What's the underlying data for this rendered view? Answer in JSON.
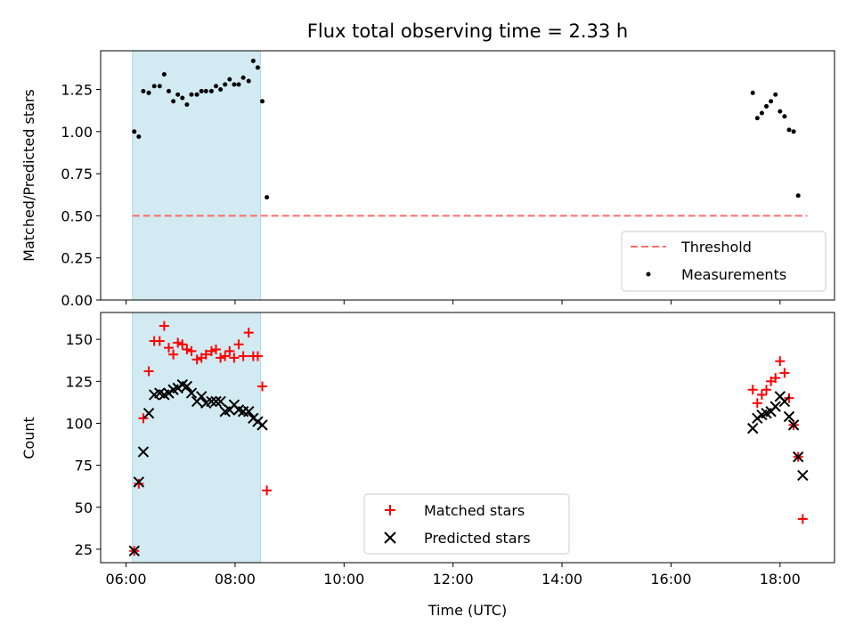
{
  "chart_data": [
    {
      "type": "scatter",
      "title": "Flux total observing time = 2.33 h",
      "xlabel": "",
      "ylabel": "Matched/Predicted stars",
      "xlim": [
        "05:32",
        "19:00"
      ],
      "ylim": [
        0,
        1.48
      ],
      "yticks": [
        "0.00",
        "0.25",
        "0.50",
        "0.75",
        "1.00",
        "1.25"
      ],
      "shaded_region": {
        "x_from": "06:07",
        "x_to": "08:28",
        "color": "#add8e6"
      },
      "threshold": {
        "name": "Threshold",
        "value": 0.5,
        "x_from": "06:07",
        "x_to": "18:30",
        "color": "#ff6b6b",
        "style": "dashed"
      },
      "series": [
        {
          "name": "Measurements",
          "marker": "dot",
          "color": "#000000",
          "points": [
            [
              "06:09",
              1.0
            ],
            [
              "06:14",
              0.97
            ],
            [
              "06:19",
              1.24
            ],
            [
              "06:25",
              1.23
            ],
            [
              "06:31",
              1.27
            ],
            [
              "06:37",
              1.27
            ],
            [
              "06:42",
              1.34
            ],
            [
              "06:47",
              1.24
            ],
            [
              "06:52",
              1.18
            ],
            [
              "06:57",
              1.22
            ],
            [
              "07:02",
              1.2
            ],
            [
              "07:07",
              1.16
            ],
            [
              "07:12",
              1.22
            ],
            [
              "07:18",
              1.22
            ],
            [
              "07:23",
              1.24
            ],
            [
              "07:28",
              1.24
            ],
            [
              "07:34",
              1.24
            ],
            [
              "07:39",
              1.27
            ],
            [
              "07:44",
              1.25
            ],
            [
              "07:49",
              1.28
            ],
            [
              "07:54",
              1.31
            ],
            [
              "07:59",
              1.28
            ],
            [
              "08:04",
              1.28
            ],
            [
              "08:09",
              1.32
            ],
            [
              "08:15",
              1.3
            ],
            [
              "08:20",
              1.42
            ],
            [
              "08:25",
              1.38
            ],
            [
              "08:30",
              1.18
            ],
            [
              "08:35",
              0.61
            ],
            [
              "17:30",
              1.23
            ],
            [
              "17:35",
              1.08
            ],
            [
              "17:40",
              1.11
            ],
            [
              "17:45",
              1.15
            ],
            [
              "17:50",
              1.18
            ],
            [
              "17:55",
              1.22
            ],
            [
              "18:00",
              1.12
            ],
            [
              "18:05",
              1.09
            ],
            [
              "18:10",
              1.01
            ],
            [
              "18:15",
              1.0
            ],
            [
              "18:20",
              0.62
            ]
          ]
        }
      ],
      "legend": {
        "position": "bottom-right",
        "entries": [
          "Threshold",
          "Measurements"
        ]
      },
      "grid": false
    },
    {
      "type": "scatter",
      "title": "",
      "xlabel": "Time (UTC)",
      "ylabel": "Count",
      "xlim": [
        "05:32",
        "19:00"
      ],
      "ylim": [
        17,
        166
      ],
      "xticks": [
        "06:00",
        "08:00",
        "10:00",
        "12:00",
        "14:00",
        "16:00",
        "18:00"
      ],
      "yticks": [
        "25",
        "50",
        "75",
        "100",
        "125",
        "150"
      ],
      "shaded_region": {
        "x_from": "06:07",
        "x_to": "08:28",
        "color": "#add8e6"
      },
      "series": [
        {
          "name": "Matched stars",
          "marker": "plus",
          "color": "#ff0000",
          "points": [
            [
              "06:09",
              24
            ],
            [
              "06:14",
              64
            ],
            [
              "06:19",
              103
            ],
            [
              "06:25",
              131
            ],
            [
              "06:31",
              149
            ],
            [
              "06:37",
              149
            ],
            [
              "06:42",
              158
            ],
            [
              "06:47",
              145
            ],
            [
              "06:52",
              141
            ],
            [
              "06:57",
              148
            ],
            [
              "07:02",
              147
            ],
            [
              "07:07",
              144
            ],
            [
              "07:12",
              143
            ],
            [
              "07:18",
              138
            ],
            [
              "07:23",
              139
            ],
            [
              "07:28",
              141
            ],
            [
              "07:34",
              143
            ],
            [
              "07:39",
              144
            ],
            [
              "07:44",
              139
            ],
            [
              "07:49",
              140
            ],
            [
              "07:54",
              143
            ],
            [
              "07:59",
              139
            ],
            [
              "08:04",
              147
            ],
            [
              "08:09",
              140
            ],
            [
              "08:15",
              154
            ],
            [
              "08:20",
              140
            ],
            [
              "08:25",
              140
            ],
            [
              "08:30",
              122
            ],
            [
              "08:35",
              60
            ],
            [
              "17:30",
              120
            ],
            [
              "17:35",
              112
            ],
            [
              "17:40",
              117
            ],
            [
              "17:45",
              120
            ],
            [
              "17:50",
              125
            ],
            [
              "17:55",
              127
            ],
            [
              "18:00",
              137
            ],
            [
              "18:05",
              130
            ],
            [
              "18:10",
              115
            ],
            [
              "18:15",
              99
            ],
            [
              "18:20",
              80
            ],
            [
              "18:25",
              43
            ]
          ]
        },
        {
          "name": "Predicted stars",
          "marker": "x",
          "color": "#000000",
          "points": [
            [
              "06:09",
              24
            ],
            [
              "06:14",
              65
            ],
            [
              "06:19",
              83
            ],
            [
              "06:25",
              106
            ],
            [
              "06:31",
              117
            ],
            [
              "06:37",
              118
            ],
            [
              "06:42",
              117
            ],
            [
              "06:47",
              118
            ],
            [
              "06:52",
              120
            ],
            [
              "06:57",
              121
            ],
            [
              "07:02",
              123
            ],
            [
              "07:07",
              122
            ],
            [
              "07:12",
              118
            ],
            [
              "07:18",
              113
            ],
            [
              "07:23",
              116
            ],
            [
              "07:28",
              112
            ],
            [
              "07:34",
              113
            ],
            [
              "07:39",
              113
            ],
            [
              "07:44",
              113
            ],
            [
              "07:49",
              107
            ],
            [
              "07:54",
              108
            ],
            [
              "07:59",
              111
            ],
            [
              "08:04",
              108
            ],
            [
              "08:09",
              107
            ],
            [
              "08:15",
              107
            ],
            [
              "08:20",
              103
            ],
            [
              "08:25",
              101
            ],
            [
              "08:30",
              99
            ],
            [
              "17:30",
              97
            ],
            [
              "17:35",
              103
            ],
            [
              "17:40",
              105
            ],
            [
              "17:45",
              106
            ],
            [
              "17:50",
              107
            ],
            [
              "17:55",
              110
            ],
            [
              "18:00",
              116
            ],
            [
              "18:05",
              113
            ],
            [
              "18:10",
              104
            ],
            [
              "18:15",
              99
            ],
            [
              "18:20",
              80
            ],
            [
              "18:25",
              69
            ]
          ]
        }
      ],
      "legend": {
        "position": "bottom-center",
        "entries": [
          "Matched stars",
          "Predicted stars"
        ]
      },
      "grid": false
    }
  ]
}
